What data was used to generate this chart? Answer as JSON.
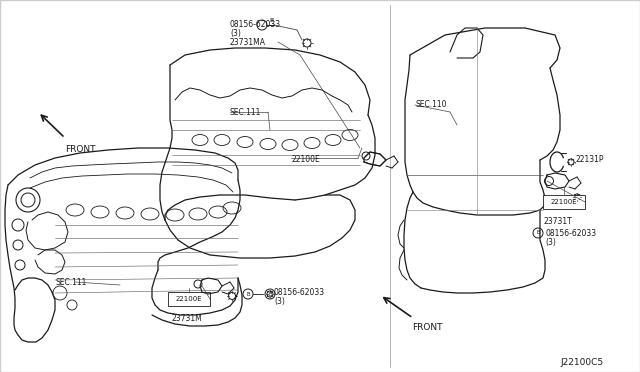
{
  "bg_color": "#ffffff",
  "line_color": "#1a1a1a",
  "text_color": "#1a1a1a",
  "fig_width": 6.4,
  "fig_height": 3.72,
  "diagram_code": "J22100C5",
  "left_upper": {
    "sec_label": "SEC.111",
    "bolt_label1": "08156-62033",
    "bolt_label2": "(3)",
    "sensor_label": "23731MA",
    "bracket_label": "22100E"
  },
  "left_lower": {
    "sec_label": "SEC.111",
    "bracket_label": "22100E",
    "sensor_label": "23731M",
    "bolt_label1": "08156-62033",
    "bolt_label2": "(3)"
  },
  "right": {
    "sec_label": "SEC.110",
    "clip_label": "22131P",
    "bracket_label": "22100E",
    "sensor_label": "23731T",
    "bolt_label1": "08156-62033",
    "bolt_label2": "(3)"
  },
  "front_text": "FRONT"
}
